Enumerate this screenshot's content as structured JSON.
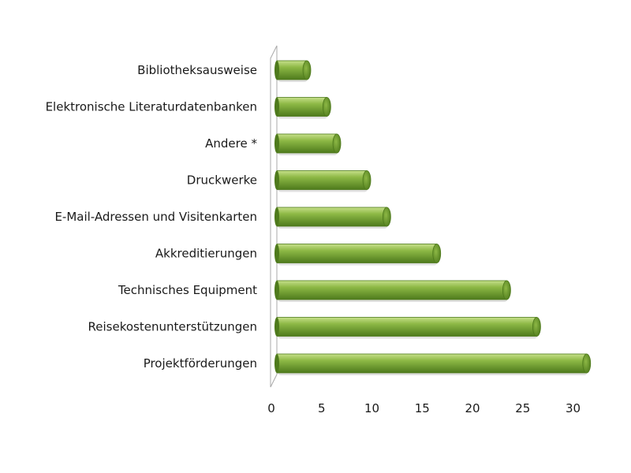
{
  "chart_data": {
    "type": "bar",
    "orientation": "horizontal",
    "categories": [
      "Bibliotheksausweise",
      "Elektronische Literaturdatenbanken",
      "Andere *",
      "Druckwerke",
      "E-Mail-Adressen und Visitenkarten",
      "Akkreditierungen",
      "Technisches Equipment",
      "Reisekostenunterstützungen",
      "Projektförderungen"
    ],
    "values": [
      3,
      5,
      6,
      9,
      11,
      16,
      23,
      26,
      31
    ],
    "xlim": [
      0,
      30
    ],
    "xticks": [
      0,
      5,
      10,
      15,
      20,
      25,
      30
    ],
    "title": "",
    "xlabel": "",
    "ylabel": "",
    "grid": false,
    "legend": "none",
    "bar_color": "#8db845",
    "bar_color_dark": "#4e7a1c",
    "bar_color_light": "#c6e08a"
  }
}
